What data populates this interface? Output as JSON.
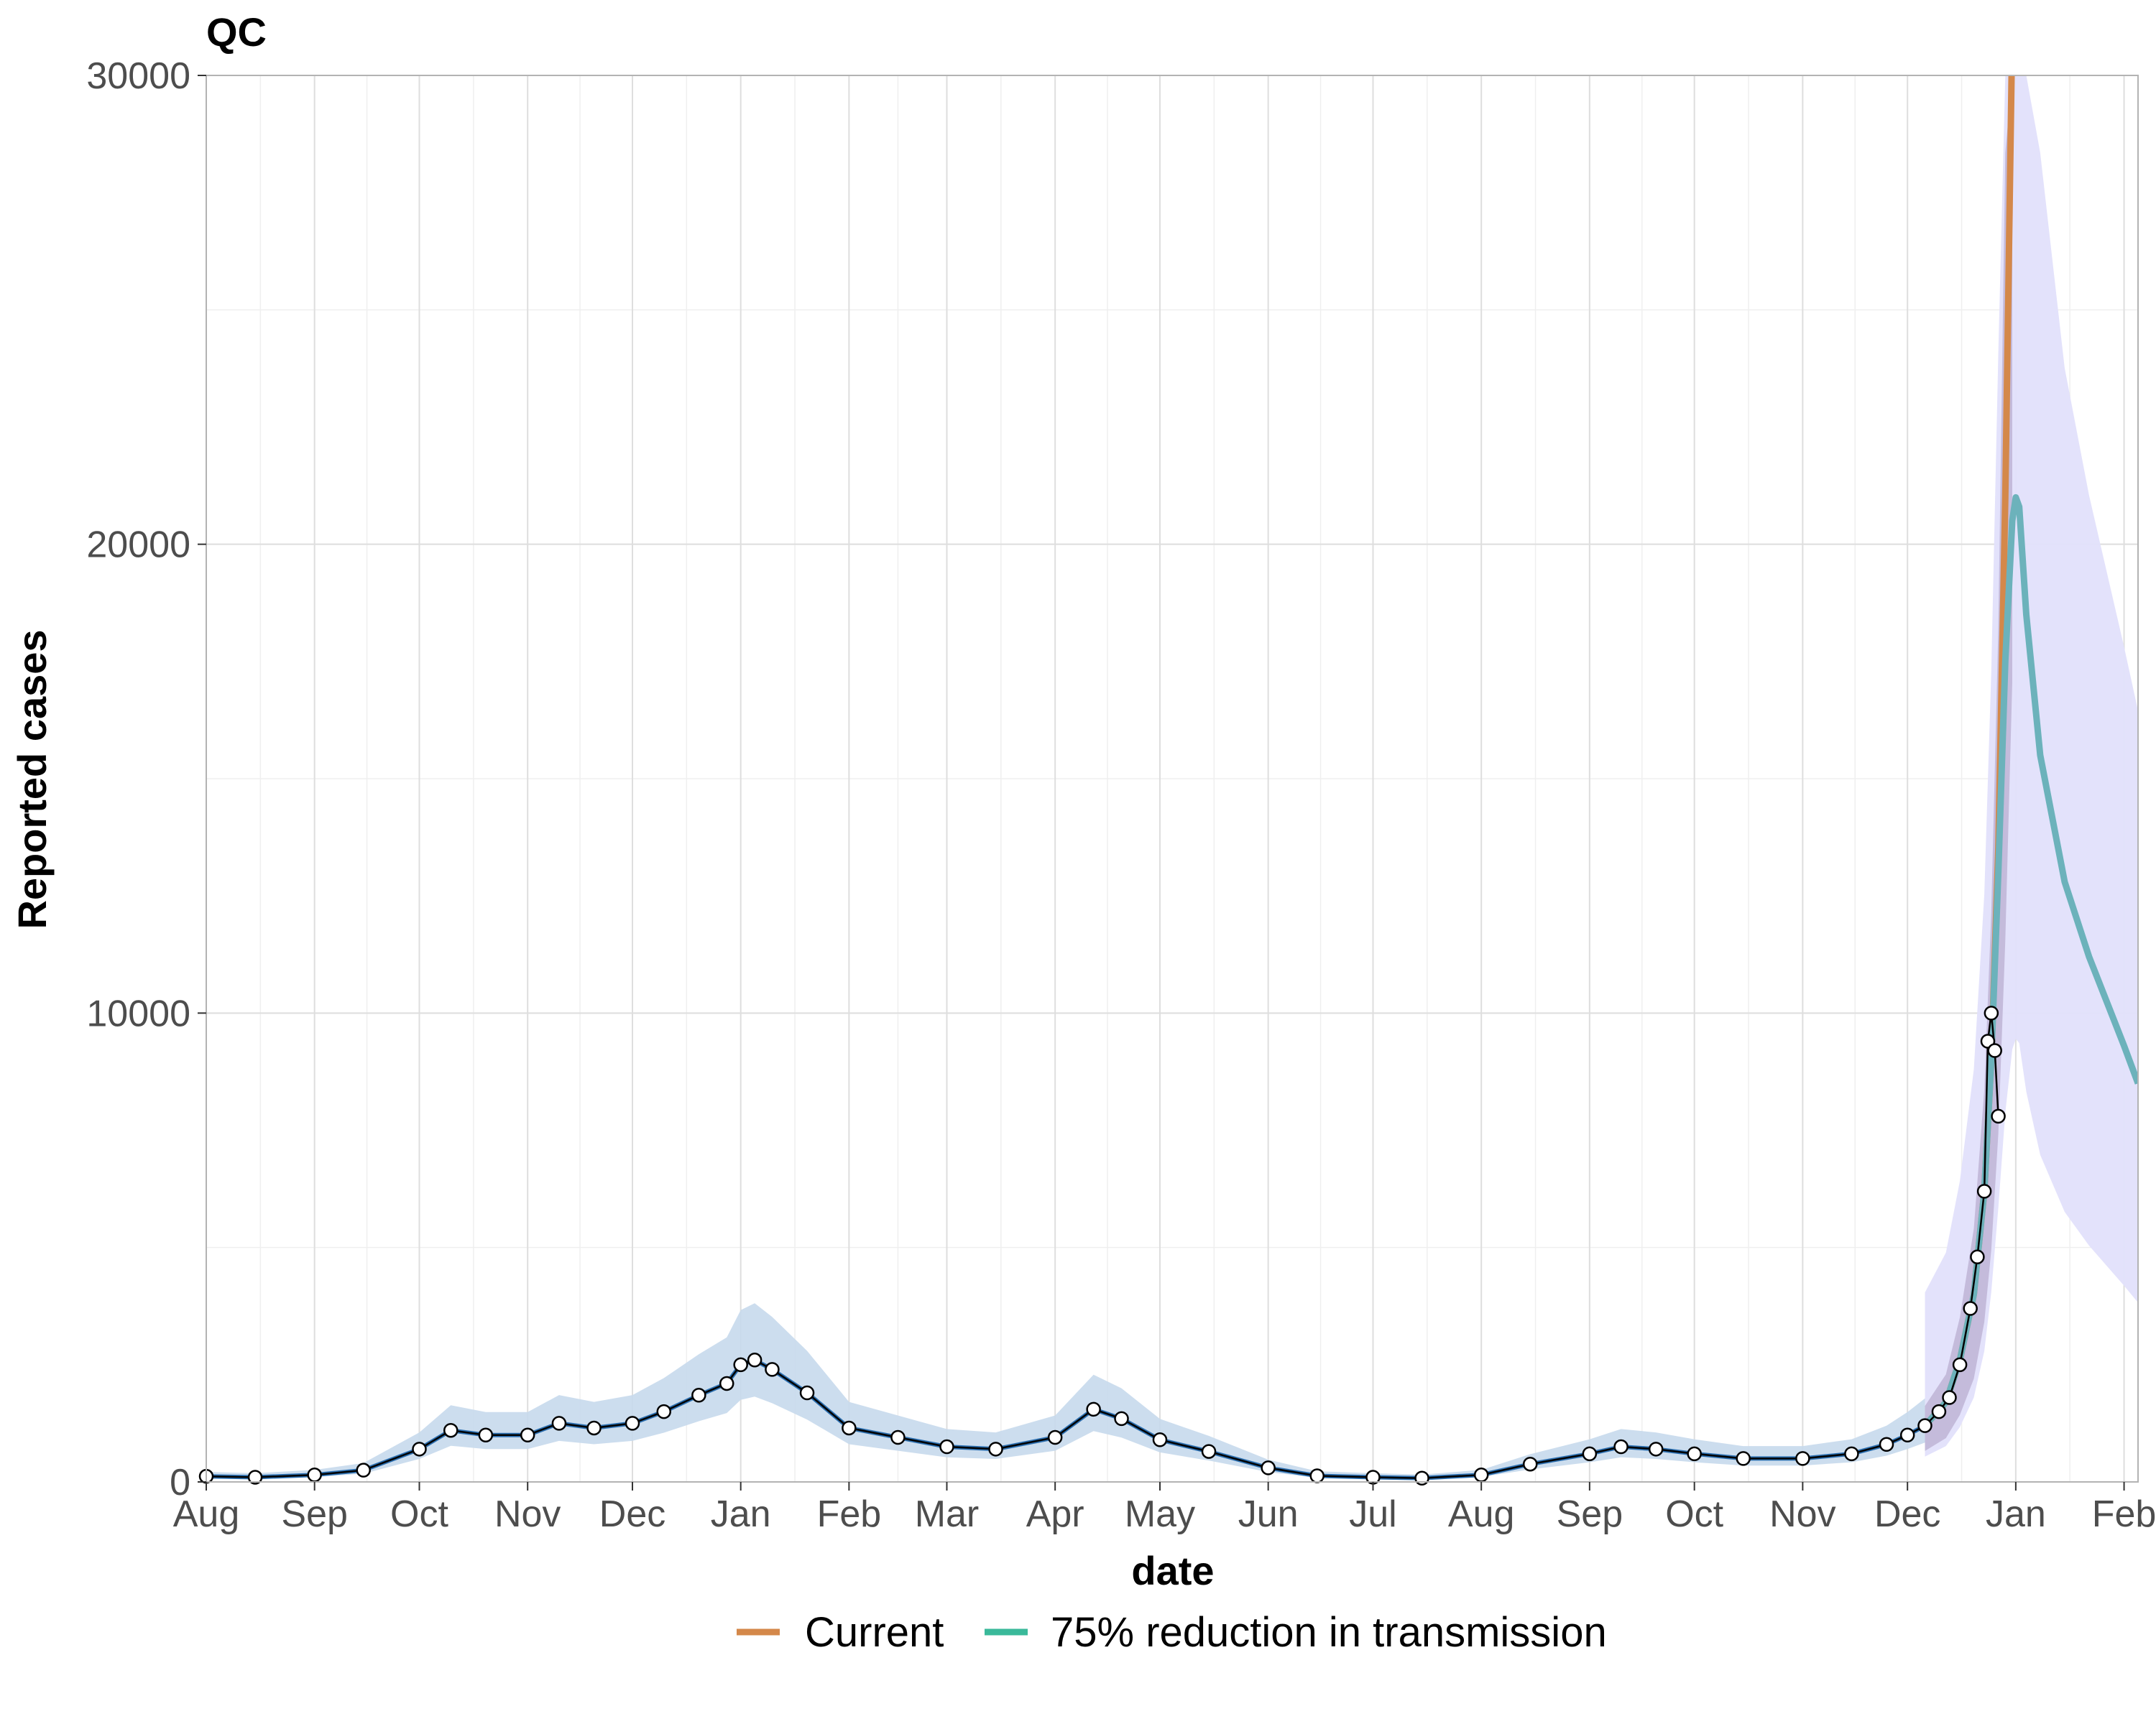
{
  "chart_data": {
    "type": "line",
    "title": "QC",
    "xlabel": "date",
    "ylabel": "Reported cases",
    "ylim": [
      0,
      30000
    ],
    "yticks": [
      0,
      10000,
      20000,
      30000
    ],
    "xlim": [
      "2020-08-01",
      "2022-02-05"
    ],
    "xticks": [
      {
        "date": "2020-08-01",
        "label": "Aug"
      },
      {
        "date": "2020-09-01",
        "label": "Sep"
      },
      {
        "date": "2020-10-01",
        "label": "Oct"
      },
      {
        "date": "2020-11-01",
        "label": "Nov"
      },
      {
        "date": "2020-12-01",
        "label": "Dec"
      },
      {
        "date": "2021-01-01",
        "label": "Jan"
      },
      {
        "date": "2021-02-01",
        "label": "Feb"
      },
      {
        "date": "2021-03-01",
        "label": "Mar"
      },
      {
        "date": "2021-04-01",
        "label": "Apr"
      },
      {
        "date": "2021-05-01",
        "label": "May"
      },
      {
        "date": "2021-06-01",
        "label": "Jun"
      },
      {
        "date": "2021-07-01",
        "label": "Jul"
      },
      {
        "date": "2021-08-01",
        "label": "Aug"
      },
      {
        "date": "2021-09-01",
        "label": "Sep"
      },
      {
        "date": "2021-10-01",
        "label": "Oct"
      },
      {
        "date": "2021-11-01",
        "label": "Nov"
      },
      {
        "date": "2021-12-01",
        "label": "Dec"
      },
      {
        "date": "2022-01-01",
        "label": "Jan"
      },
      {
        "date": "2022-02-01",
        "label": "Feb"
      }
    ],
    "grid": true,
    "legend_position": "bottom",
    "colors": {
      "observed_points": "#ffffff",
      "observed_stroke": "#000000",
      "fit_line": "#2c6fb0",
      "fit_band": "#c6d9ec",
      "current": "#d4884a",
      "reduction": "#6cb2bb",
      "forecast_band": "#e1e0fb",
      "overlap_band": "#b9aed0"
    },
    "observed": [
      [
        "2020-08-01",
        120
      ],
      [
        "2020-08-15",
        100
      ],
      [
        "2020-09-01",
        150
      ],
      [
        "2020-09-15",
        250
      ],
      [
        "2020-10-01",
        700
      ],
      [
        "2020-10-10",
        1100
      ],
      [
        "2020-10-20",
        1000
      ],
      [
        "2020-11-01",
        1000
      ],
      [
        "2020-11-10",
        1250
      ],
      [
        "2020-11-20",
        1150
      ],
      [
        "2020-12-01",
        1250
      ],
      [
        "2020-12-10",
        1500
      ],
      [
        "2020-12-20",
        1850
      ],
      [
        "2020-12-28",
        2100
      ],
      [
        "2021-01-01",
        2500
      ],
      [
        "2021-01-05",
        2600
      ],
      [
        "2021-01-10",
        2400
      ],
      [
        "2021-01-20",
        1900
      ],
      [
        "2021-02-01",
        1150
      ],
      [
        "2021-02-15",
        950
      ],
      [
        "2021-03-01",
        750
      ],
      [
        "2021-03-15",
        700
      ],
      [
        "2021-04-01",
        950
      ],
      [
        "2021-04-12",
        1550
      ],
      [
        "2021-04-20",
        1350
      ],
      [
        "2021-05-01",
        900
      ],
      [
        "2021-05-15",
        650
      ],
      [
        "2021-06-01",
        300
      ],
      [
        "2021-06-15",
        130
      ],
      [
        "2021-07-01",
        100
      ],
      [
        "2021-07-15",
        80
      ],
      [
        "2021-08-01",
        150
      ],
      [
        "2021-08-15",
        380
      ],
      [
        "2021-09-01",
        600
      ],
      [
        "2021-09-10",
        750
      ],
      [
        "2021-09-20",
        700
      ],
      [
        "2021-10-01",
        600
      ],
      [
        "2021-10-15",
        500
      ],
      [
        "2021-11-01",
        500
      ],
      [
        "2021-11-15",
        600
      ],
      [
        "2021-11-25",
        800
      ],
      [
        "2021-12-01",
        1000
      ],
      [
        "2021-12-06",
        1200
      ],
      [
        "2021-12-10",
        1500
      ],
      [
        "2021-12-13",
        1800
      ],
      [
        "2021-12-16",
        2500
      ],
      [
        "2021-12-19",
        3700
      ],
      [
        "2021-12-21",
        4800
      ],
      [
        "2021-12-23",
        6200
      ],
      [
        "2021-12-24",
        9400
      ],
      [
        "2021-12-25",
        10000
      ],
      [
        "2021-12-26",
        9200
      ],
      [
        "2021-12-27",
        7800
      ]
    ],
    "series": [
      {
        "name": "Current",
        "values": [
          [
            "2021-12-06",
            1200
          ],
          [
            "2021-12-12",
            1700
          ],
          [
            "2021-12-16",
            2600
          ],
          [
            "2021-12-20",
            4000
          ],
          [
            "2021-12-23",
            6200
          ],
          [
            "2021-12-25",
            9000
          ],
          [
            "2021-12-27",
            13500
          ],
          [
            "2021-12-29",
            21000
          ],
          [
            "2021-12-31",
            31000
          ]
        ]
      },
      {
        "name": "75% reduction in transmission",
        "values": [
          [
            "2021-12-06",
            1200
          ],
          [
            "2021-12-12",
            1700
          ],
          [
            "2021-12-16",
            2600
          ],
          [
            "2021-12-20",
            4000
          ],
          [
            "2021-12-23",
            6200
          ],
          [
            "2021-12-25",
            9000
          ],
          [
            "2021-12-27",
            13000
          ],
          [
            "2021-12-29",
            17500
          ],
          [
            "2021-12-31",
            20500
          ],
          [
            "2022-01-01",
            21000
          ],
          [
            "2022-01-02",
            20800
          ],
          [
            "2022-01-04",
            18500
          ],
          [
            "2022-01-08",
            15500
          ],
          [
            "2022-01-15",
            12800
          ],
          [
            "2022-01-22",
            11200
          ],
          [
            "2022-02-01",
            9300
          ],
          [
            "2022-02-05",
            8500
          ]
        ]
      }
    ]
  }
}
